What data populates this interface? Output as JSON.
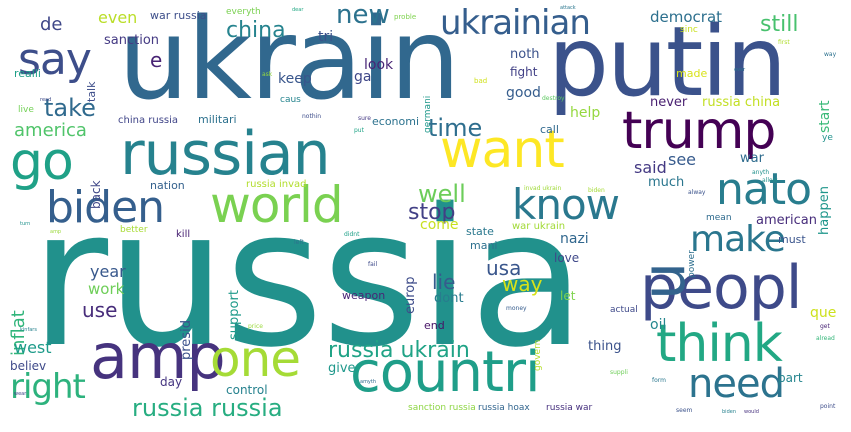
{
  "words": [
    {
      "text": "russia",
      "color": "#21918c",
      "vertical": false
    },
    {
      "text": "ukrain",
      "color": "#31688e",
      "vertical": false
    },
    {
      "text": "putin",
      "color": "#3b528b",
      "vertical": false
    },
    {
      "text": "russian",
      "color": "#26828e",
      "vertical": false
    },
    {
      "text": "countri",
      "color": "#1f9e89",
      "vertical": false
    },
    {
      "text": "peopl",
      "color": "#3e4a89",
      "vertical": false
    },
    {
      "text": "amp",
      "color": "#46337e",
      "vertical": false
    },
    {
      "text": "trump",
      "color": "#440154",
      "vertical": false
    },
    {
      "text": "want",
      "color": "#fde725",
      "vertical": false
    },
    {
      "text": "world",
      "color": "#7ad151",
      "vertical": false
    },
    {
      "text": "think",
      "color": "#22a884",
      "vertical": false
    },
    {
      "text": "biden",
      "color": "#355f8d",
      "vertical": false
    },
    {
      "text": "one",
      "color": "#a5db36",
      "vertical": false
    },
    {
      "text": "know",
      "color": "#2a788e",
      "vertical": false
    },
    {
      "text": "u",
      "color": "#33638d",
      "vertical": true
    },
    {
      "text": "go",
      "color": "#1fa187",
      "vertical": false
    },
    {
      "text": "say",
      "color": "#3d4e8a",
      "vertical": false
    },
    {
      "text": "nato",
      "color": "#287d8e",
      "vertical": false
    },
    {
      "text": "need",
      "color": "#2c738e",
      "vertical": false
    },
    {
      "text": "make",
      "color": "#2a768e",
      "vertical": false
    },
    {
      "text": "ukrainian",
      "color": "#355e8d",
      "vertical": false
    },
    {
      "text": "right",
      "color": "#2db27d",
      "vertical": false
    },
    {
      "text": "russia russia",
      "color": "#27ad81",
      "vertical": false
    },
    {
      "text": "russia ukrain",
      "color": "#20a386",
      "vertical": false
    },
    {
      "text": "take",
      "color": "#306a8e",
      "vertical": false
    },
    {
      "text": "new",
      "color": "#2c728e",
      "vertical": false
    },
    {
      "text": "time",
      "color": "#2e6e8e",
      "vertical": false
    },
    {
      "text": "well",
      "color": "#6ccd5a",
      "vertical": false
    },
    {
      "text": "stop",
      "color": "#424086",
      "vertical": false
    },
    {
      "text": "china",
      "color": "#25838e",
      "vertical": false
    },
    {
      "text": "still",
      "color": "#48c16e",
      "vertical": false
    },
    {
      "text": "use",
      "color": "#472c7a",
      "vertical": false
    },
    {
      "text": "way",
      "color": "#d8e219",
      "vertical": false
    },
    {
      "text": "lie",
      "color": "#365c8d",
      "vertical": false
    },
    {
      "text": "usa",
      "color": "#39568c",
      "vertical": false
    },
    {
      "text": "america",
      "color": "#50c46a",
      "vertical": false
    },
    {
      "text": "de",
      "color": "#3f4788",
      "vertical": false
    },
    {
      "text": "even",
      "color": "#bade28",
      "vertical": false
    },
    {
      "text": "democrat",
      "color": "#2d708e",
      "vertical": false
    },
    {
      "text": "e",
      "color": "#482374",
      "vertical": false
    },
    {
      "text": "inflat",
      "color": "#31b57b",
      "vertical": true
    },
    {
      "text": "year",
      "color": "#38588c",
      "vertical": false
    },
    {
      "text": "work",
      "color": "#6ece58",
      "vertical": false
    },
    {
      "text": "west",
      "color": "#1e9b8a",
      "vertical": false
    },
    {
      "text": "said",
      "color": "#443983",
      "vertical": false
    },
    {
      "text": "see",
      "color": "#375b8d",
      "vertical": false
    },
    {
      "text": "keep",
      "color": "#39568c",
      "vertical": false
    },
    {
      "text": "look",
      "color": "#482576",
      "vertical": false
    },
    {
      "text": "tri",
      "color": "#3b528b",
      "vertical": false
    },
    {
      "text": "sanction",
      "color": "#443a83",
      "vertical": false
    },
    {
      "text": "good",
      "color": "#365d8d",
      "vertical": false
    },
    {
      "text": "help",
      "color": "#95d840",
      "vertical": false
    },
    {
      "text": "never",
      "color": "#481f70",
      "vertical": false
    },
    {
      "text": "russia china",
      "color": "#c2df23",
      "vertical": false
    },
    {
      "text": "noth",
      "color": "#3b528b",
      "vertical": false
    },
    {
      "text": "fight",
      "color": "#424186",
      "vertical": false
    },
    {
      "text": "start",
      "color": "#38b977",
      "vertical": true
    },
    {
      "text": "much",
      "color": "#2a768e",
      "vertical": false
    },
    {
      "text": "american",
      "color": "#472d7b",
      "vertical": false
    },
    {
      "text": "que",
      "color": "#cde11d",
      "vertical": false
    },
    {
      "text": "oil",
      "color": "#24878e",
      "vertical": false
    },
    {
      "text": "thing",
      "color": "#3b528b",
      "vertical": false
    },
    {
      "text": "believ",
      "color": "#3e4989",
      "vertical": false
    },
    {
      "text": "give",
      "color": "#1f988b",
      "vertical": false
    },
    {
      "text": "day",
      "color": "#453581",
      "vertical": false
    },
    {
      "text": "control",
      "color": "#26828e",
      "vertical": false
    },
    {
      "text": "part",
      "color": "#25858e",
      "vertical": false
    },
    {
      "text": "come",
      "color": "#c8e020",
      "vertical": false
    },
    {
      "text": "state",
      "color": "#2a788e",
      "vertical": false
    },
    {
      "text": "nazi",
      "color": "#31678e",
      "vertical": false
    },
    {
      "text": "mani",
      "color": "#2d708e",
      "vertical": false
    },
    {
      "text": "love",
      "color": "#3f4889",
      "vertical": false
    },
    {
      "text": "let",
      "color": "#7fd34e",
      "vertical": false
    },
    {
      "text": "dont",
      "color": "#287c8e",
      "vertical": false
    },
    {
      "text": "end",
      "color": "#481467",
      "vertical": false
    },
    {
      "text": "weapon",
      "color": "#482677",
      "vertical": false
    },
    {
      "text": "support",
      "color": "#1f9a8a",
      "vertical": true
    },
    {
      "text": "presid",
      "color": "#3b518b",
      "vertical": true
    },
    {
      "text": "europ",
      "color": "#3e4c8a",
      "vertical": true
    },
    {
      "text": "back",
      "color": "#3f4788",
      "vertical": true
    },
    {
      "text": "war",
      "color": "#2f6c8e",
      "vertical": false
    },
    {
      "text": "happen",
      "color": "#1f968b",
      "vertical": true
    },
    {
      "text": "call",
      "color": "#30698e",
      "vertical": false
    },
    {
      "text": "economi",
      "color": "#2c728e",
      "vertical": false
    },
    {
      "text": "militari",
      "color": "#2d718e",
      "vertical": false
    },
    {
      "text": "china russia",
      "color": "#404588",
      "vertical": false
    },
    {
      "text": "realli",
      "color": "#1f9f88",
      "vertical": false
    },
    {
      "text": "talk",
      "color": "#3d4d8a",
      "vertical": true
    },
    {
      "text": "ga",
      "color": "#3f4788",
      "vertical": false
    },
    {
      "text": "made",
      "color": "#d8e219",
      "vertical": false
    },
    {
      "text": "nation",
      "color": "#34618d",
      "vertical": false
    },
    {
      "text": "russia invad",
      "color": "#b2dd2d",
      "vertical": false
    },
    {
      "text": "kill",
      "color": "#482273",
      "vertical": false
    },
    {
      "text": "war ukrain",
      "color": "#a2da37",
      "vertical": false
    },
    {
      "text": "must",
      "color": "#3a548c",
      "vertical": false
    },
    {
      "text": "mean",
      "color": "#2f6b8e",
      "vertical": false
    },
    {
      "text": "war russia",
      "color": "#3d4e8a",
      "vertical": false
    },
    {
      "text": "everyth",
      "color": "#7ad151",
      "vertical": false
    },
    {
      "text": "sanction russia",
      "color": "#8ed645",
      "vertical": false
    },
    {
      "text": "russia hoax",
      "color": "#32658e",
      "vertical": false
    },
    {
      "text": "russia war",
      "color": "#46307e",
      "vertical": false
    },
    {
      "text": "germani",
      "color": "#1f988b",
      "vertical": true
    },
    {
      "text": "caus",
      "color": "#25848e",
      "vertical": false
    },
    {
      "text": "live",
      "color": "#73d056",
      "vertical": false
    },
    {
      "text": "actual",
      "color": "#3e4989",
      "vertical": false
    },
    {
      "text": "govern",
      "color": "#b5de2b",
      "vertical": true
    },
    {
      "text": "better",
      "color": "#a8db34",
      "vertical": false
    },
    {
      "text": "power",
      "color": "#2e6f8e",
      "vertical": true
    },
    {
      "text": "ye",
      "color": "#20928c",
      "vertical": false
    },
    {
      "text": "sinc",
      "color": "#c8e020",
      "vertical": false
    },
    {
      "text": "proble",
      "color": "#7fd34e",
      "vertical": false
    },
    {
      "text": "bad",
      "color": "#d0e11c",
      "vertical": false
    },
    {
      "text": "first",
      "color": "#b0dd2f",
      "vertical": false
    },
    {
      "text": "way",
      "color": "#2c718e",
      "vertical": false
    },
    {
      "text": "ask",
      "color": "#95d840",
      "vertical": false
    },
    {
      "text": "destroy",
      "color": "#5ec962",
      "vertical": false
    },
    {
      "text": "sure",
      "color": "#443983",
      "vertical": false
    },
    {
      "text": "put",
      "color": "#20a486",
      "vertical": false
    },
    {
      "text": "nothin",
      "color": "#3d4d8a",
      "vertical": false
    },
    {
      "text": "invad ukrain",
      "color": "#a0da39",
      "vertical": false
    },
    {
      "text": "biden",
      "color": "#a5db36",
      "vertical": false
    },
    {
      "text": "anyth",
      "color": "#21918c",
      "vertical": false
    },
    {
      "text": "allow",
      "color": "#21918c",
      "vertical": false
    },
    {
      "text": "alway",
      "color": "#3b528b",
      "vertical": false
    },
    {
      "text": "left",
      "color": "#2c738e",
      "vertical": false
    },
    {
      "text": "didnt",
      "color": "#1fa088",
      "vertical": false
    },
    {
      "text": "fail",
      "color": "#3e4a89",
      "vertical": false
    },
    {
      "text": "money",
      "color": "#365c8d",
      "vertical": false
    },
    {
      "text": "price",
      "color": "#9bd93c",
      "vertical": false
    },
    {
      "text": "suppli",
      "color": "#6ece58",
      "vertical": false
    },
    {
      "text": "form",
      "color": "#2a778e",
      "vertical": false
    },
    {
      "text": "point",
      "color": "#3d4d8a",
      "vertical": false
    },
    {
      "text": "get",
      "color": "#482576",
      "vertical": false
    },
    {
      "text": "alread",
      "color": "#34b679",
      "vertical": false
    },
    {
      "text": "seem",
      "color": "#3b528b",
      "vertical": false
    },
    {
      "text": "biden",
      "color": "#26818e",
      "vertical": false
    },
    {
      "text": "would",
      "color": "#46307e",
      "vertical": false
    },
    {
      "text": "wear",
      "color": "#3f4788",
      "vertical": false
    },
    {
      "text": "amyth",
      "color": "#2f6b8e",
      "vertical": false
    },
    {
      "text": "read",
      "color": "#3e4a89",
      "vertical": false
    },
    {
      "text": "kinfars",
      "color": "#26828e",
      "vertical": false
    },
    {
      "text": "attack",
      "color": "#2a768e",
      "vertical": false
    },
    {
      "text": "ever",
      "color": "#2c728e",
      "vertical": false
    },
    {
      "text": "turn",
      "color": "#20928c",
      "vertical": false
    },
    {
      "text": "amp",
      "color": "#9bd93c",
      "vertical": false
    },
    {
      "text": "dear",
      "color": "#22a884",
      "vertical": false
    }
  ]
}
